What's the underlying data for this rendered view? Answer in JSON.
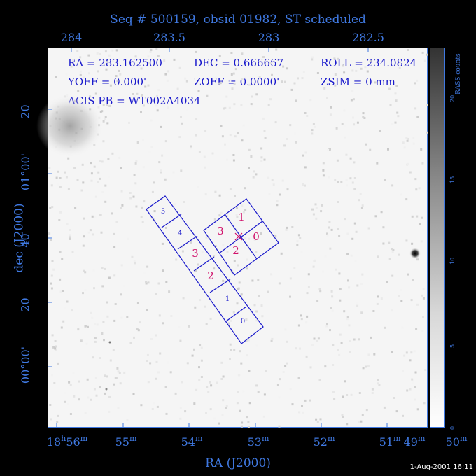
{
  "title": "Seq # 500159, obsid 01982, ST scheduled",
  "top_ticks": [
    "284",
    "283.5",
    "283",
    "282.5"
  ],
  "bottom_ticks": [
    {
      "h": "18",
      "h_unit": "h",
      "m": "56",
      "m_unit": "m"
    },
    {
      "m": "55",
      "m_unit": "m"
    },
    {
      "m": "54",
      "m_unit": "m"
    },
    {
      "m": "53",
      "m_unit": "m"
    },
    {
      "m": "52",
      "m_unit": "m"
    },
    {
      "m": "51",
      "m_unit": "m"
    },
    {
      "m": "50",
      "m_unit": "m"
    },
    {
      "m": "49",
      "m_unit": "m"
    }
  ],
  "left_ticks": [
    "20",
    "01°00'",
    "40",
    "20",
    "00°00'"
  ],
  "xlabel": "RA (J2000)",
  "ylabel": "dec (J2000)",
  "info": {
    "ra": "RA = 283.162500",
    "dec": "DEC = 0.666667",
    "roll": "ROLL = 234.0824",
    "yoff": "YOFF =   0.000'",
    "zoff": "ZOFF =  0.0000'",
    "zsim": "ZSIM = 0 mm",
    "acis_pb": "ACIS PB = WT002A4034"
  },
  "colorbar": {
    "label": "RASS counts",
    "ticks": [
      "0",
      "5",
      "10",
      "15",
      "20"
    ]
  },
  "chips_s": [
    "5",
    "4",
    "3",
    "2",
    "1",
    "0"
  ],
  "chips_i": [
    "0",
    "1",
    "2",
    "3"
  ],
  "colors": {
    "frame": "#3f78e0",
    "chip_outline": "#1a1acc",
    "chip_label_active": "#d0106a",
    "chip_label": "#1a1acc"
  },
  "timestamp": "1-Aug-2001 16:11"
}
